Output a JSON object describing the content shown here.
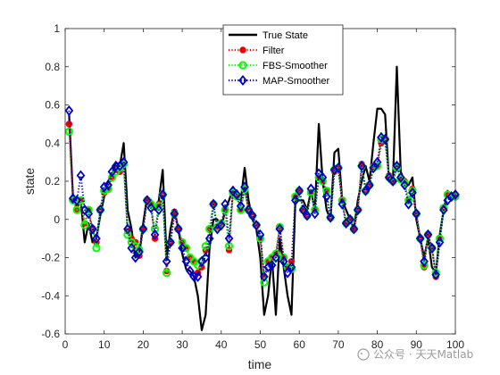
{
  "chart_data": {
    "type": "line",
    "xlabel": "time",
    "ylabel": "state",
    "xlim": [
      0,
      100
    ],
    "ylim": [
      -0.6,
      1
    ],
    "xticks": [
      0,
      10,
      20,
      30,
      40,
      50,
      60,
      70,
      80,
      90,
      100
    ],
    "yticks": [
      -0.6,
      -0.4,
      -0.2,
      0,
      0.2,
      0.4,
      0.6,
      0.8,
      1
    ],
    "ytick_labels": [
      "-0.6",
      "-0.4",
      "-0.2",
      "0",
      "0.2",
      "0.4",
      "0.6",
      "0.8",
      "1"
    ],
    "grid": false,
    "legend_position": "top-center",
    "x": [
      1,
      2,
      3,
      4,
      5,
      6,
      7,
      8,
      9,
      10,
      11,
      12,
      13,
      14,
      15,
      16,
      17,
      18,
      19,
      20,
      21,
      22,
      23,
      24,
      25,
      26,
      27,
      28,
      29,
      30,
      31,
      32,
      33,
      34,
      35,
      36,
      37,
      38,
      39,
      40,
      41,
      42,
      43,
      44,
      45,
      46,
      47,
      48,
      49,
      50,
      51,
      52,
      53,
      54,
      55,
      56,
      57,
      58,
      59,
      60,
      61,
      62,
      63,
      64,
      65,
      66,
      67,
      68,
      69,
      70,
      71,
      72,
      73,
      74,
      75,
      76,
      77,
      78,
      79,
      80,
      81,
      82,
      83,
      84,
      85,
      86,
      87,
      88,
      89,
      90,
      91,
      92,
      93,
      94,
      95,
      96,
      97,
      98,
      99,
      100
    ],
    "series": [
      {
        "name": "True State",
        "color": "#000000",
        "style": "solid",
        "marker": "none",
        "values": [
          0.55,
          0.12,
          0.06,
          0.1,
          -0.12,
          -0.02,
          -0.12,
          -0.1,
          0.02,
          0.12,
          0.2,
          0.24,
          0.3,
          0.28,
          0.4,
          0.05,
          -0.05,
          -0.2,
          -0.18,
          -0.02,
          0.12,
          0.1,
          0.05,
          0.1,
          0.26,
          -0.2,
          -0.05,
          0.05,
          -0.05,
          -0.18,
          -0.26,
          -0.27,
          -0.3,
          -0.4,
          -0.58,
          -0.5,
          -0.15,
          0.0,
          0.0,
          -0.05,
          0.05,
          0.1,
          0.16,
          0.15,
          0.1,
          0.27,
          0.1,
          0.0,
          -0.05,
          -0.2,
          -0.5,
          -0.4,
          -0.2,
          -0.5,
          -0.1,
          -0.25,
          -0.4,
          -0.5,
          0.1,
          0.1,
          0.1,
          0.05,
          0.15,
          0.05,
          0.5,
          0.2,
          0.05,
          0.0,
          0.35,
          0.37,
          0.1,
          0.05,
          0.0,
          -0.05,
          0.1,
          0.2,
          0.28,
          0.2,
          0.4,
          0.58,
          0.58,
          0.55,
          0.2,
          0.2,
          0.8,
          0.25,
          0.2,
          0.18,
          0.22,
          0.0,
          -0.1,
          -0.2,
          -0.1,
          -0.25,
          -0.28,
          -0.08,
          0.05,
          0.15,
          0.1,
          0.12
        ]
      },
      {
        "name": "Filter",
        "color": "#ee0000",
        "style": "dotted",
        "marker": "circle",
        "values": [
          0.5,
          0.1,
          0.05,
          0.1,
          -0.02,
          0.05,
          -0.05,
          -0.12,
          0.05,
          0.14,
          0.16,
          0.22,
          0.26,
          0.25,
          0.3,
          -0.06,
          -0.1,
          -0.12,
          -0.19,
          -0.05,
          0.1,
          0.08,
          -0.1,
          0.08,
          0.13,
          -0.27,
          -0.12,
          0.04,
          -0.05,
          -0.12,
          -0.15,
          -0.2,
          -0.22,
          -0.28,
          -0.25,
          -0.16,
          -0.05,
          0.08,
          -0.04,
          -0.02,
          0.05,
          -0.16,
          0.14,
          0.12,
          0.05,
          0.16,
          0.05,
          0.02,
          -0.03,
          -0.1,
          -0.3,
          -0.22,
          -0.2,
          -0.18,
          -0.04,
          -0.2,
          -0.25,
          -0.22,
          0.12,
          0.15,
          0.05,
          0.02,
          0.14,
          0.05,
          0.22,
          0.2,
          0.15,
          0.01,
          0.25,
          0.27,
          0.1,
          -0.02,
          0.0,
          -0.05,
          0.05,
          0.29,
          0.15,
          0.18,
          0.28,
          0.28,
          0.4,
          0.42,
          0.23,
          0.2,
          0.28,
          0.21,
          0.2,
          0.1,
          0.16,
          0.03,
          -0.1,
          -0.25,
          -0.08,
          -0.15,
          -0.3,
          -0.1,
          0.06,
          0.13,
          0.12,
          0.13
        ]
      },
      {
        "name": "FBS-Smoother",
        "color": "#00ff00",
        "style": "dotted",
        "marker": "circle",
        "values": [
          0.46,
          0.1,
          0.05,
          0.1,
          -0.03,
          0.05,
          -0.05,
          -0.15,
          0.05,
          0.15,
          0.16,
          0.22,
          0.25,
          0.27,
          0.29,
          -0.08,
          -0.12,
          -0.14,
          -0.16,
          -0.05,
          0.1,
          0.08,
          -0.05,
          0.07,
          0.13,
          -0.28,
          -0.12,
          0.03,
          -0.05,
          -0.12,
          -0.15,
          -0.2,
          -0.22,
          -0.24,
          -0.22,
          -0.14,
          -0.05,
          0.08,
          -0.04,
          -0.02,
          0.05,
          -0.14,
          0.14,
          0.12,
          0.05,
          0.16,
          0.05,
          0.02,
          -0.03,
          -0.1,
          -0.33,
          -0.22,
          -0.2,
          -0.18,
          -0.04,
          -0.2,
          -0.25,
          -0.26,
          0.12,
          0.15,
          0.05,
          0.02,
          0.14,
          0.05,
          0.22,
          0.2,
          0.15,
          0.01,
          0.26,
          0.27,
          0.1,
          -0.02,
          0.0,
          -0.05,
          0.05,
          0.28,
          0.15,
          0.18,
          0.27,
          0.28,
          0.42,
          0.42,
          0.22,
          0.2,
          0.27,
          0.21,
          0.19,
          0.1,
          0.15,
          0.03,
          -0.1,
          -0.24,
          -0.08,
          -0.15,
          -0.28,
          -0.1,
          0.06,
          0.13,
          0.12,
          0.12
        ]
      },
      {
        "name": "MAP-Smoother",
        "color": "#0000cc",
        "style": "dotted",
        "marker": "diamond",
        "values": [
          0.57,
          0.11,
          0.1,
          0.23,
          0.05,
          0.03,
          -0.05,
          -0.1,
          0.05,
          0.17,
          0.18,
          0.25,
          0.28,
          0.28,
          0.3,
          -0.05,
          -0.15,
          -0.2,
          -0.17,
          -0.05,
          0.1,
          0.06,
          -0.08,
          0.05,
          0.13,
          -0.22,
          -0.12,
          0.03,
          -0.05,
          -0.15,
          -0.22,
          -0.27,
          -0.3,
          -0.3,
          -0.22,
          -0.2,
          -0.1,
          0.08,
          -0.05,
          -0.03,
          0.08,
          -0.1,
          0.15,
          0.13,
          0.07,
          0.17,
          0.05,
          0.02,
          -0.03,
          -0.08,
          -0.3,
          -0.25,
          -0.24,
          -0.2,
          -0.05,
          -0.22,
          -0.28,
          -0.25,
          0.1,
          0.15,
          0.05,
          0.02,
          0.16,
          0.03,
          0.24,
          0.22,
          0.12,
          0.01,
          0.26,
          0.27,
          0.08,
          -0.02,
          0.0,
          -0.05,
          0.05,
          0.28,
          0.15,
          0.18,
          0.27,
          0.3,
          0.43,
          0.42,
          0.22,
          0.2,
          0.28,
          0.22,
          0.18,
          0.08,
          0.14,
          0.03,
          -0.1,
          -0.22,
          -0.08,
          -0.15,
          -0.29,
          -0.12,
          0.05,
          0.1,
          0.12,
          0.13
        ]
      }
    ]
  },
  "watermark": {
    "text": "公众号 · 天天Matlab"
  }
}
